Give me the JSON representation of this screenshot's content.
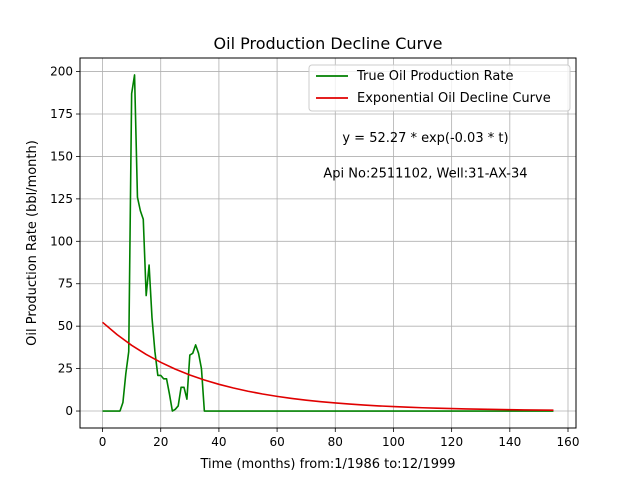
{
  "chart_data": {
    "type": "line",
    "title": "Oil Production Decline Curve",
    "xlabel": "Time (months) from:1/1986 to:12/1999",
    "ylabel": "Oil Production Rate (bbl/month)",
    "xlim": [
      -7.75,
      162.75
    ],
    "ylim": [
      -10,
      208
    ],
    "xticks": [
      0,
      20,
      40,
      60,
      80,
      100,
      120,
      140,
      160
    ],
    "yticks": [
      0,
      25,
      50,
      75,
      100,
      125,
      150,
      175,
      200
    ],
    "grid": true,
    "legend_position": "top-right",
    "annotations": [
      {
        "text": "y = 52.27 * exp(-0.03 * t)",
        "x": 111,
        "y": 161
      },
      {
        "text": "Api No:2511102, Well:31-AX-34",
        "x": 111,
        "y": 140
      }
    ],
    "series": [
      {
        "name": "True Oil Production Rate",
        "color": "#008000",
        "x": [
          0,
          1,
          2,
          3,
          4,
          5,
          6,
          7,
          8,
          9,
          10,
          11,
          12,
          13,
          14,
          15,
          16,
          17,
          18,
          19,
          20,
          21,
          22,
          23,
          24,
          25,
          26,
          27,
          28,
          29,
          30,
          31,
          32,
          33,
          34,
          35,
          36,
          37,
          38,
          39,
          40,
          60,
          80,
          100,
          120,
          140,
          155
        ],
        "values": [
          0,
          0,
          0,
          0,
          0,
          0,
          0,
          5,
          22,
          35,
          187,
          198,
          126,
          118,
          113,
          68,
          86,
          55,
          35,
          21,
          21,
          19,
          19,
          10,
          0,
          1,
          3,
          14,
          14,
          7,
          33,
          34,
          39,
          34,
          25,
          0,
          0,
          0,
          0,
          0,
          0,
          0,
          0,
          0,
          0,
          0,
          0
        ]
      },
      {
        "name": "Exponential Oil Decline Curve",
        "color": "#e00000",
        "function": "52.27 * exp(-0.03 * t)",
        "x": [
          0,
          5,
          10,
          15,
          20,
          25,
          30,
          35,
          40,
          45,
          50,
          55,
          60,
          65,
          70,
          75,
          80,
          85,
          90,
          95,
          100,
          105,
          110,
          115,
          120,
          125,
          130,
          135,
          140,
          145,
          150,
          155
        ],
        "values": [
          52.27,
          45.0,
          38.72,
          33.33,
          28.69,
          24.69,
          21.25,
          18.29,
          15.74,
          13.55,
          11.66,
          10.04,
          8.64,
          7.43,
          6.4,
          5.51,
          4.74,
          4.08,
          3.51,
          3.02,
          2.6,
          2.24,
          1.93,
          1.66,
          1.43,
          1.23,
          1.06,
          0.91,
          0.78,
          0.67,
          0.58,
          0.5
        ]
      }
    ]
  }
}
